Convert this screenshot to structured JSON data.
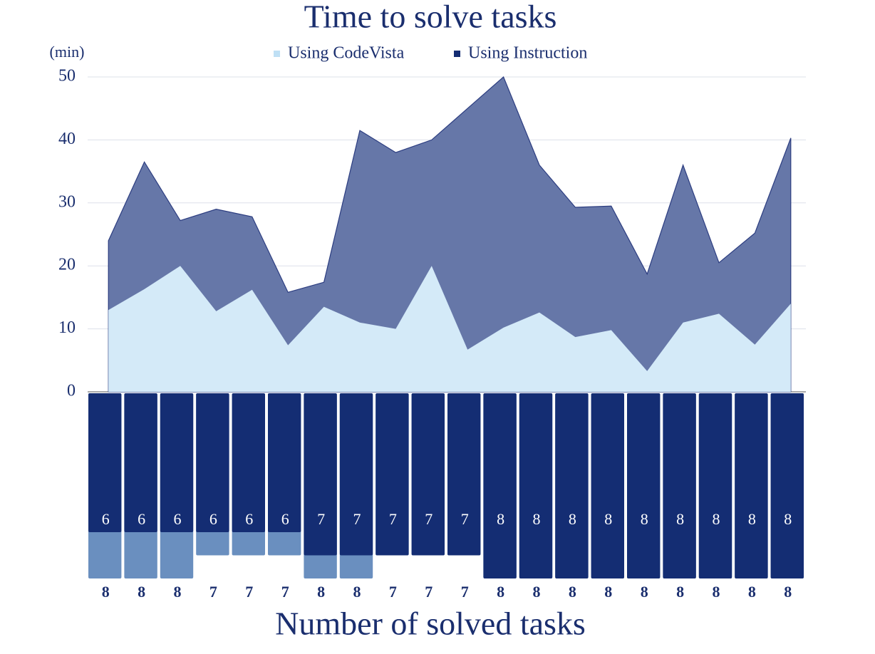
{
  "chart_data": [
    {
      "type": "area",
      "title": "Time to solve tasks",
      "ylabel": "(min)",
      "series": [
        {
          "name": "Using CodeVista",
          "color": "#d4eaf8",
          "values": [
            13,
            16.3,
            20,
            12.8,
            16.2,
            7.4,
            13.5,
            11,
            10,
            20,
            6.7,
            10.2,
            12.6,
            8.7,
            9.8,
            3.3,
            11,
            12.4,
            7.5,
            14
          ]
        },
        {
          "name": "Using Instruction",
          "color": "#6677a8",
          "values": [
            24,
            36.5,
            27.2,
            29,
            27.8,
            15.8,
            17.4,
            41.5,
            38,
            40,
            45,
            50,
            36,
            29.3,
            29.5,
            18.7,
            36,
            20.5,
            25.2,
            40.3
          ]
        }
      ],
      "ylim": [
        0,
        50
      ],
      "yticks": [
        0,
        10,
        20,
        30,
        40,
        50
      ],
      "grid": true
    },
    {
      "type": "bar",
      "xlabel": "Number of solved tasks",
      "inverted": true,
      "series": [
        {
          "color": "#6a8fbf",
          "values": [
            8,
            8,
            8,
            7,
            7,
            7,
            8,
            8,
            7,
            7,
            7,
            8,
            8,
            8,
            8,
            8,
            8,
            8,
            8,
            8
          ]
        },
        {
          "color": "#142d73",
          "values": [
            6,
            6,
            6,
            6,
            6,
            6,
            7,
            7,
            7,
            7,
            7,
            8,
            8,
            8,
            8,
            8,
            8,
            8,
            8,
            8
          ]
        }
      ],
      "ylim": [
        0,
        8
      ]
    }
  ]
}
